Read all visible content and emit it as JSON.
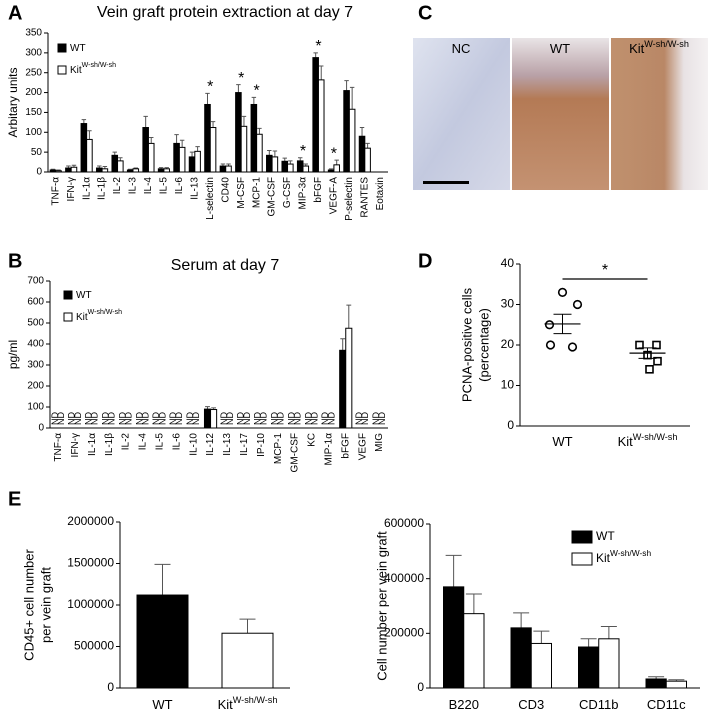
{
  "chart_data": [
    {
      "type": "bar",
      "panel": "A",
      "title": "Vein graft protein extraction at day 7",
      "y_label": "Arbitary units",
      "categories": [
        "TNF-α",
        "IFN-γ",
        "IL-1α",
        "IL-1β",
        "IL-2",
        "IL-3",
        "IL-4",
        "IL-5",
        "IL-6",
        "IL-13",
        "L-selectin",
        "CD40",
        "M-CSF",
        "MCP-1",
        "GM-CSF",
        "G-CSF",
        "MIP-3α",
        "bFGF",
        "VEGF-A",
        "P-selectin",
        "RANTES",
        "Eotaxin"
      ],
      "series": [
        {
          "name": "WT",
          "color": "#000000",
          "values": [
            5,
            10,
            122,
            10,
            42,
            5,
            112,
            8,
            72,
            38,
            170,
            15,
            200,
            170,
            42,
            27,
            28,
            288,
            5,
            205,
            90,
            0
          ],
          "errors": [
            2,
            5,
            10,
            5,
            8,
            2,
            28,
            3,
            22,
            12,
            28,
            5,
            20,
            18,
            12,
            8,
            8,
            12,
            3,
            25,
            22,
            null
          ]
        },
        {
          "name": "Kit",
          "name_superscript": "W-sh/W-sh",
          "color": "#ffffff",
          "values": [
            3,
            12,
            82,
            8,
            28,
            8,
            72,
            8,
            62,
            52,
            112,
            15,
            115,
            95,
            38,
            20,
            15,
            232,
            18,
            158,
            60,
            0
          ],
          "errors": [
            2,
            5,
            22,
            6,
            8,
            2,
            15,
            3,
            18,
            12,
            15,
            5,
            25,
            15,
            15,
            8,
            5,
            35,
            12,
            55,
            12,
            null
          ]
        }
      ],
      "annotations": [
        {
          "text": "*",
          "category": "L-selectin"
        },
        {
          "text": "*",
          "category": "M-CSF"
        },
        {
          "text": "*",
          "category": "MCP-1"
        },
        {
          "text": "*",
          "category": "MIP-3α"
        },
        {
          "text": "*",
          "category": "bFGF"
        },
        {
          "text": "*",
          "category": "VEGF-A"
        }
      ],
      "ylim": [
        0,
        350
      ],
      "yticks": [
        0,
        50,
        100,
        150,
        200,
        250,
        300,
        350
      ],
      "legend": "upper left"
    },
    {
      "type": "bar",
      "panel": "B",
      "title": "Serum at day 7",
      "y_label": "pg/ml",
      "categories": [
        "TNF-α",
        "IFN-γ",
        "IL-1α",
        "IL-1β",
        "IL-2",
        "IL-4",
        "IL-5",
        "IL-6",
        "IL-10",
        "IL-12",
        "IL-13",
        "IL-17",
        "IP-10",
        "MCP-1",
        "GM-CSF",
        "KC",
        "MIP-1α",
        "bFGF",
        "VEGF",
        "MIG"
      ],
      "series": [
        {
          "name": "WT",
          "color": "#000000",
          "values": [
            null,
            null,
            null,
            null,
            null,
            null,
            null,
            null,
            null,
            90,
            null,
            null,
            null,
            null,
            null,
            null,
            null,
            370,
            null,
            null
          ],
          "errors": [
            null,
            null,
            null,
            null,
            null,
            null,
            null,
            null,
            null,
            12,
            null,
            null,
            null,
            null,
            null,
            null,
            null,
            55,
            null,
            null
          ],
          "value_labels": [
            "ND",
            "ND",
            "ND",
            "ND",
            "ND",
            "ND",
            "ND",
            "ND",
            "ND",
            null,
            "ND",
            "ND",
            "ND",
            "ND",
            "ND",
            "ND",
            "ND",
            null,
            "ND",
            "ND"
          ]
        },
        {
          "name": "Kit",
          "name_superscript": "W-sh/W-sh",
          "color": "#ffffff",
          "values": [
            null,
            null,
            null,
            null,
            null,
            null,
            null,
            null,
            null,
            88,
            null,
            null,
            null,
            null,
            null,
            null,
            null,
            475,
            null,
            null
          ],
          "errors": [
            null,
            null,
            null,
            null,
            null,
            null,
            null,
            null,
            null,
            8,
            null,
            null,
            null,
            null,
            null,
            null,
            null,
            110,
            null,
            null
          ],
          "value_labels": [
            "ND",
            "ND",
            "ND",
            "ND",
            "ND",
            "ND",
            "ND",
            "ND",
            "ND",
            null,
            "ND",
            "ND",
            "ND",
            "ND",
            "ND",
            "ND",
            "ND",
            null,
            "ND",
            "ND"
          ]
        }
      ],
      "ylim": [
        0,
        700
      ],
      "yticks": [
        0,
        100,
        200,
        300,
        400,
        500,
        600,
        700
      ],
      "legend": "upper left"
    },
    {
      "type": "image",
      "panel": "C",
      "labels": [
        "NC",
        "WT",
        "Kit"
      ],
      "label_superscripts": [
        null,
        null,
        "W-sh/W-sh"
      ]
    },
    {
      "type": "dot",
      "panel": "D",
      "y_label": [
        "PCNA-positive cells",
        "(percentage)"
      ],
      "categories": [
        "WT",
        "Kit"
      ],
      "category_superscripts": [
        null,
        "W-sh/W-sh"
      ],
      "points": [
        [
          33,
          30,
          25,
          20,
          19.5
        ],
        [
          20,
          20,
          17.5,
          16,
          14
        ]
      ],
      "markers": [
        "circle",
        "square"
      ],
      "means": [
        25.2,
        18
      ],
      "sems": [
        2.4,
        1.3
      ],
      "annotations": [
        {
          "text": "*",
          "between": [
            "WT",
            "Kit"
          ]
        }
      ],
      "ylim": [
        0,
        40
      ],
      "yticks": [
        0,
        10,
        20,
        30,
        40
      ]
    },
    {
      "type": "bar",
      "panel": "E",
      "y_label": [
        "CD45+ cell number",
        "per vein graft"
      ],
      "categories": [
        "WT",
        "Kit"
      ],
      "category_superscripts": [
        null,
        "W-sh/W-sh"
      ],
      "values": [
        1120000,
        660000
      ],
      "errors": [
        370000,
        170000
      ],
      "colors": [
        "#000000",
        "#ffffff"
      ],
      "ylim": [
        0,
        2000000
      ],
      "yticks": [
        0,
        500000,
        1000000,
        1500000,
        2000000
      ]
    },
    {
      "type": "bar",
      "y_label": "Cell number per vein graft",
      "categories": [
        "B220",
        "CD3",
        "CD11b",
        "CD11c"
      ],
      "series": [
        {
          "name": "WT",
          "color": "#000000",
          "values": [
            370000,
            220000,
            150000,
            33000
          ],
          "errors": [
            115000,
            55000,
            30000,
            8000
          ]
        },
        {
          "name": "Kit",
          "name_superscript": "W-sh/W-sh",
          "color": "#ffffff",
          "values": [
            272000,
            163000,
            180000,
            25000
          ],
          "errors": [
            72000,
            45000,
            45000,
            5000
          ]
        }
      ],
      "ylim": [
        0,
        600000
      ],
      "yticks": [
        0,
        200000,
        400000,
        600000
      ],
      "legend": "upper right"
    }
  ]
}
